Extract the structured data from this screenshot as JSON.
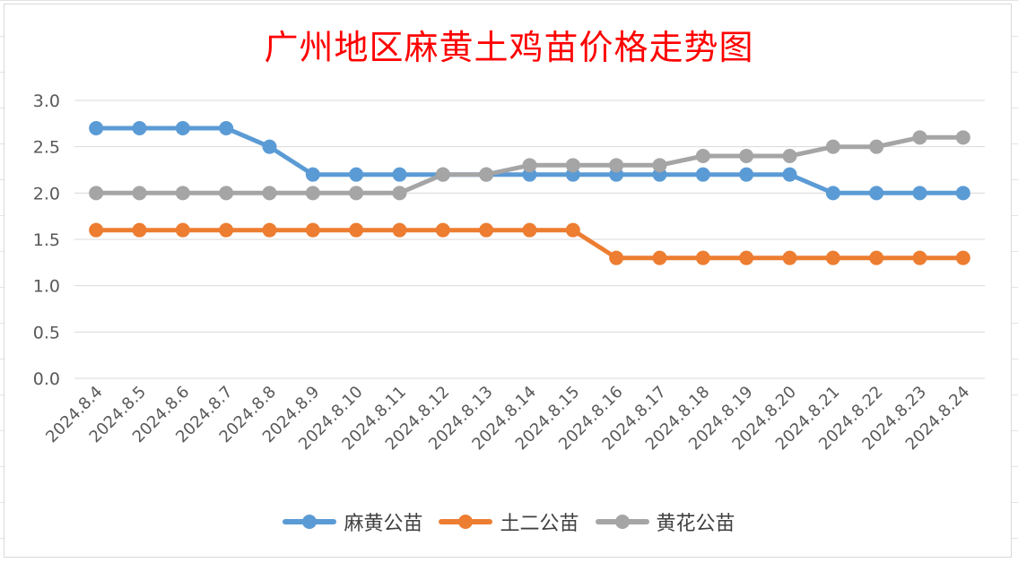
{
  "chart_data": {
    "type": "line",
    "title": "广州地区麻黄土鸡苗价格走势图",
    "categories": [
      "2024.8.4",
      "2024.8.5",
      "2024.8.6",
      "2024.8.7",
      "2024.8.8",
      "2024.8.9",
      "2024.8.10",
      "2024.8.11",
      "2024.8.12",
      "2024.8.13",
      "2024.8.14",
      "2024.8.15",
      "2024.8.16",
      "2024.8.17",
      "2024.8.18",
      "2024.8.19",
      "2024.8.20",
      "2024.8.21",
      "2024.8.22",
      "2024.8.23",
      "2024.8.24"
    ],
    "ylim": [
      0,
      3.0
    ],
    "yticks": [
      "0.0",
      "0.5",
      "1.0",
      "1.5",
      "2.0",
      "2.5",
      "3.0"
    ],
    "grid": true,
    "legend_position": "bottom",
    "series": [
      {
        "name": "麻黄公苗",
        "color": "#5b9bd5",
        "values": [
          2.7,
          2.7,
          2.7,
          2.7,
          2.5,
          2.2,
          2.2,
          2.2,
          2.2,
          2.2,
          2.2,
          2.2,
          2.2,
          2.2,
          2.2,
          2.2,
          2.2,
          2.0,
          2.0,
          2.0,
          2.0
        ]
      },
      {
        "name": "土二公苗",
        "color": "#ed7d31",
        "values": [
          1.6,
          1.6,
          1.6,
          1.6,
          1.6,
          1.6,
          1.6,
          1.6,
          1.6,
          1.6,
          1.6,
          1.6,
          1.3,
          1.3,
          1.3,
          1.3,
          1.3,
          1.3,
          1.3,
          1.3,
          1.3
        ]
      },
      {
        "name": "黄花公苗",
        "color": "#a5a5a5",
        "values": [
          2.0,
          2.0,
          2.0,
          2.0,
          2.0,
          2.0,
          2.0,
          2.0,
          2.2,
          2.2,
          2.3,
          2.3,
          2.3,
          2.3,
          2.4,
          2.4,
          2.4,
          2.5,
          2.5,
          2.6,
          2.6
        ]
      }
    ]
  }
}
